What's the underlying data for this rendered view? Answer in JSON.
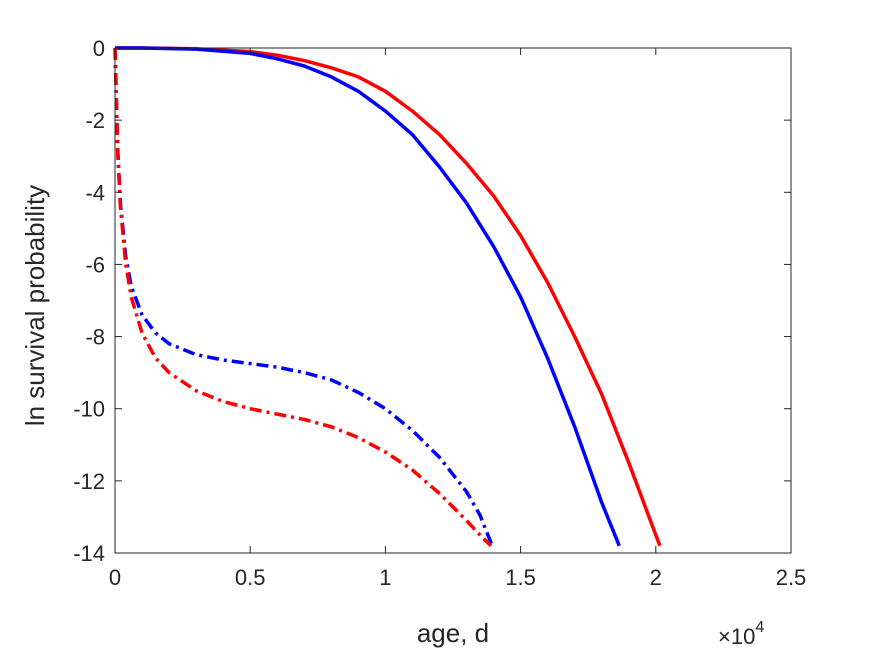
{
  "chart_data": {
    "type": "line",
    "xlabel": "age, d",
    "ylabel": "ln survival probability",
    "x_exponent_label": "×10",
    "x_exponent_power": "4",
    "xlim": [
      0,
      25000
    ],
    "ylim": [
      -14,
      0
    ],
    "grid": false,
    "x_ticks": [
      {
        "value": 0,
        "label": "0"
      },
      {
        "value": 5000,
        "label": "0.5"
      },
      {
        "value": 10000,
        "label": "1"
      },
      {
        "value": 15000,
        "label": "1.5"
      },
      {
        "value": 20000,
        "label": "2"
      },
      {
        "value": 25000,
        "label": "2.5"
      }
    ],
    "y_ticks": [
      {
        "value": 0,
        "label": "0"
      },
      {
        "value": -2,
        "label": "-2"
      },
      {
        "value": -4,
        "label": "-4"
      },
      {
        "value": -6,
        "label": "-6"
      },
      {
        "value": -8,
        "label": "-8"
      },
      {
        "value": -10,
        "label": "-10"
      },
      {
        "value": -12,
        "label": "-12"
      },
      {
        "value": -14,
        "label": "-14"
      }
    ],
    "series": [
      {
        "color": "#ff0000",
        "style": "solid",
        "x": [
          0,
          1000,
          3000,
          5000,
          6000,
          7000,
          8000,
          9000,
          10000,
          11000,
          12000,
          13000,
          14000,
          15000,
          16000,
          17000,
          18000,
          19000,
          20000,
          20150
        ],
        "y": [
          0,
          0,
          -0.02,
          -0.1,
          -0.2,
          -0.35,
          -0.55,
          -0.8,
          -1.2,
          -1.75,
          -2.4,
          -3.2,
          -4.1,
          -5.2,
          -6.5,
          -8.0,
          -9.6,
          -11.5,
          -13.5,
          -13.8
        ]
      },
      {
        "color": "#0000ff",
        "style": "solid",
        "x": [
          0,
          1000,
          3000,
          5000,
          6000,
          7000,
          8000,
          9000,
          10000,
          11000,
          12000,
          13000,
          14000,
          15000,
          16000,
          17000,
          18000,
          18650
        ],
        "y": [
          0,
          0,
          -0.03,
          -0.15,
          -0.3,
          -0.5,
          -0.8,
          -1.2,
          -1.75,
          -2.4,
          -3.3,
          -4.3,
          -5.5,
          -6.9,
          -8.6,
          -10.5,
          -12.6,
          -13.8
        ]
      },
      {
        "color": "#0000ff",
        "style": "dashdot",
        "x": [
          0,
          100,
          200,
          400,
          600,
          1000,
          1500,
          2000,
          3000,
          4000,
          5000,
          6000,
          7000,
          8000,
          9000,
          10000,
          11000,
          12000,
          13000,
          13500,
          13950
        ],
        "y": [
          0,
          -2.8,
          -4.3,
          -5.8,
          -6.6,
          -7.4,
          -7.9,
          -8.2,
          -8.5,
          -8.65,
          -8.75,
          -8.85,
          -9.0,
          -9.2,
          -9.55,
          -10.0,
          -10.6,
          -11.35,
          -12.3,
          -12.95,
          -13.8
        ]
      },
      {
        "color": "#ff0000",
        "style": "dashdot",
        "x": [
          0,
          100,
          200,
          400,
          600,
          1000,
          1500,
          2000,
          3000,
          4000,
          5000,
          6000,
          7000,
          8000,
          9000,
          10000,
          11000,
          12000,
          13000,
          13500,
          13900
        ],
        "y": [
          0,
          -2.9,
          -4.4,
          -6.0,
          -6.9,
          -7.9,
          -8.6,
          -9.0,
          -9.5,
          -9.8,
          -10.0,
          -10.15,
          -10.3,
          -10.5,
          -10.8,
          -11.2,
          -11.7,
          -12.35,
          -13.1,
          -13.5,
          -13.8
        ]
      }
    ]
  }
}
